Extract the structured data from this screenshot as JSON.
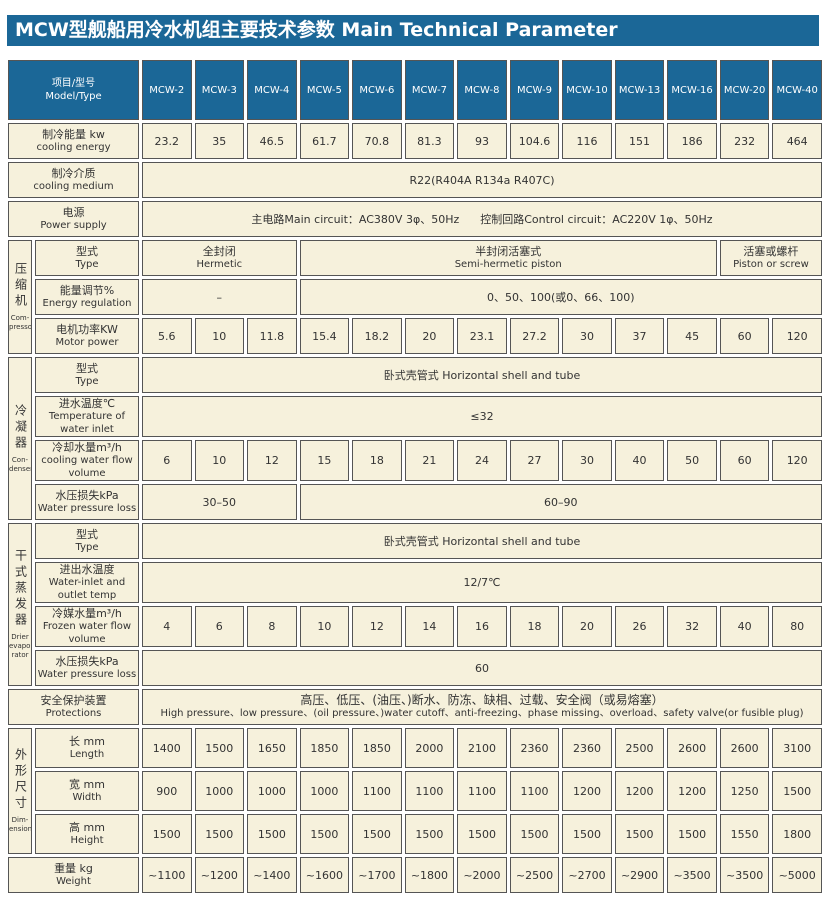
{
  "title": "MCW型舰船用冷水机组主要技术参数 Main Technical Parameter",
  "header": {
    "zh": "项目/型号",
    "en": "Model/Type"
  },
  "models": [
    "MCW-2",
    "MCW-3",
    "MCW-4",
    "MCW-5",
    "MCW-6",
    "MCW-7",
    "MCW-8",
    "MCW-9",
    "MCW-10",
    "MCW-13",
    "MCW-16",
    "MCW-20",
    "MCW-40"
  ],
  "cooling": {
    "zh": "制冷能量 kw",
    "en": "cooling energy",
    "values": [
      "23.2",
      "35",
      "46.5",
      "61.7",
      "70.8",
      "81.3",
      "93",
      "104.6",
      "116",
      "151",
      "186",
      "232",
      "464"
    ]
  },
  "medium": {
    "zh": "制冷介质",
    "en": "cooling medium",
    "value": "R22(R404A  R134a  R407C)"
  },
  "power": {
    "zh": "电源",
    "en": "Power supply",
    "value": "主电路Main circuit：AC380V 3φ、50Hz      控制回路Control circuit：AC220V 1φ、50Hz"
  },
  "compressor": {
    "group_zh": "压缩机",
    "group_en": "Com-pressor",
    "type": {
      "zh": "型式",
      "en": "Type",
      "hermetic_zh": "全封闭",
      "hermetic_en": "Hermetic",
      "semi_zh": "半封闭活塞式",
      "semi_en": "Semi-hermetic piston",
      "screw_zh": "活塞或螺杆",
      "screw_en": "Piston or screw"
    },
    "energy": {
      "zh": "能量调节%",
      "en": "Energy regulation",
      "v1": "–",
      "v2": "0、50、100(或0、66、100)"
    },
    "motor": {
      "zh": "电机功率KW",
      "en": "Motor power",
      "values": [
        "5.6",
        "10",
        "11.8",
        "15.4",
        "18.2",
        "20",
        "23.1",
        "27.2",
        "30",
        "37",
        "45",
        "60",
        "120"
      ]
    }
  },
  "condenser": {
    "group_zh": "冷凝器",
    "group_en": "Con-denser",
    "type": {
      "zh": "型式",
      "en": "Type",
      "value": "卧式壳管式  Horizontal shell and tube"
    },
    "temp": {
      "zh": "进水温度℃",
      "en": "Temperature of water inlet",
      "value": "≤32"
    },
    "flow": {
      "zh": "冷却水量m³/h",
      "en": "cooling water flow volume",
      "values": [
        "6",
        "10",
        "12",
        "15",
        "18",
        "21",
        "24",
        "27",
        "30",
        "40",
        "50",
        "60",
        "120"
      ]
    },
    "loss": {
      "zh": "水压损失kPa",
      "en": "Water pressure loss",
      "v1": "30–50",
      "v2": "60–90"
    }
  },
  "evaporator": {
    "group_zh": "干式蒸发器",
    "group_en": "Drier evapo-rator",
    "type": {
      "zh": "型式",
      "en": "Type",
      "value": "卧式壳管式  Horizontal shell and tube"
    },
    "temp": {
      "zh": "进出水温度",
      "en": "Water-inlet and outlet temp",
      "value": "12/7℃"
    },
    "flow": {
      "zh": "冷媒水量m³/h",
      "en": "Frozen water flow volume",
      "values": [
        "4",
        "6",
        "8",
        "10",
        "12",
        "14",
        "16",
        "18",
        "20",
        "26",
        "32",
        "40",
        "80"
      ]
    },
    "loss": {
      "zh": "水压损失kPa",
      "en": "Water pressure loss",
      "value": "60"
    }
  },
  "protections": {
    "zh": "安全保护装置",
    "en": "Protections",
    "value_zh": "高压、低压、(油压、)断水、防冻、缺相、过载、安全阀（或易熔塞）",
    "value_en": "High pressure、low pressure、(oil pressure、)water cutoff、anti-freezing、phase missing、overload、safety valve(or fusible plug)"
  },
  "dimension": {
    "group_zh": "外形尺寸",
    "group_en": "Dim-ension",
    "length": {
      "zh": "长 mm",
      "en": "Length",
      "values": [
        "1400",
        "1500",
        "1650",
        "1850",
        "1850",
        "2000",
        "2100",
        "2360",
        "2360",
        "2500",
        "2600",
        "2600",
        "3100"
      ]
    },
    "width": {
      "zh": "宽 mm",
      "en": "Width",
      "values": [
        "900",
        "1000",
        "1000",
        "1000",
        "1100",
        "1100",
        "1100",
        "1100",
        "1200",
        "1200",
        "1200",
        "1250",
        "1500"
      ]
    },
    "height": {
      "zh": "高 mm",
      "en": "Height",
      "values": [
        "1500",
        "1500",
        "1500",
        "1500",
        "1500",
        "1500",
        "1500",
        "1500",
        "1500",
        "1500",
        "1500",
        "1550",
        "1800"
      ]
    }
  },
  "weight": {
    "zh": "重量 kg",
    "en": "Weight",
    "values": [
      "~1100",
      "~1200",
      "~1400",
      "~1600",
      "~1700",
      "~1800",
      "~2000",
      "~2500",
      "~2700",
      "~2900",
      "~3500",
      "~3500",
      "~5000"
    ]
  }
}
